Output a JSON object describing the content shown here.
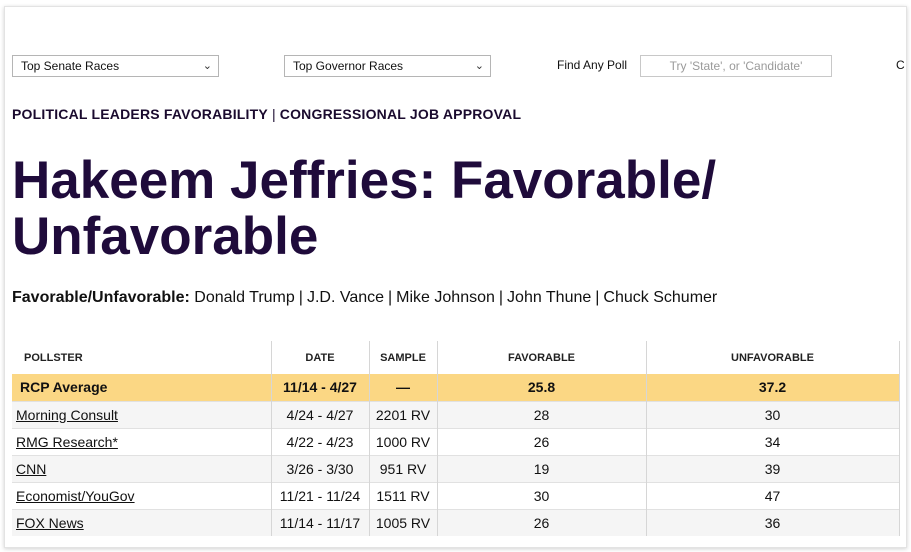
{
  "topbar": {
    "senate_select": "Top Senate Races",
    "governor_select": "Top Governor Races",
    "find_label": "Find Any Poll",
    "find_placeholder": "Try 'State', or 'Candidate'",
    "cut_text": "C"
  },
  "subnav": {
    "item1": "POLITICAL LEADERS FAVORABILITY",
    "separator": "|",
    "item2": "CONGRESSIONAL JOB APPROVAL"
  },
  "title": "Hakeem Jeffries: Favorable/ Unfavorable",
  "favorable_links": {
    "lead": "Favorable/Unfavorable:",
    "items": [
      "Donald Trump",
      "J.D. Vance",
      "Mike Johnson",
      "John Thune",
      "Chuck Schumer"
    ],
    "separator": "|"
  },
  "table": {
    "headers": [
      "POLLSTER",
      "DATE",
      "SAMPLE",
      "FAVORABLE",
      "UNFAVORABLE"
    ],
    "average": {
      "pollster": "RCP Average",
      "date": "11/14 - 4/27",
      "sample": "—",
      "favorable": "25.8",
      "unfavorable": "37.2"
    },
    "rows": [
      {
        "pollster": "Morning Consult",
        "date": "4/24 - 4/27",
        "sample": "2201 RV",
        "favorable": "28",
        "unfavorable": "30"
      },
      {
        "pollster": "RMG Research*",
        "date": "4/22 - 4/23",
        "sample": "1000 RV",
        "favorable": "26",
        "unfavorable": "34"
      },
      {
        "pollster": "CNN",
        "date": "3/26 - 3/30",
        "sample": "951 RV",
        "favorable": "19",
        "unfavorable": "39"
      },
      {
        "pollster": "Economist/YouGov",
        "date": "11/21 - 11/24",
        "sample": "1511 RV",
        "favorable": "30",
        "unfavorable": "47"
      },
      {
        "pollster": "FOX News",
        "date": "11/14 - 11/17",
        "sample": "1005 RV",
        "favorable": "26",
        "unfavorable": "36"
      }
    ]
  },
  "colors": {
    "average_row": "#fbd784",
    "title": "#1f0b3b"
  }
}
